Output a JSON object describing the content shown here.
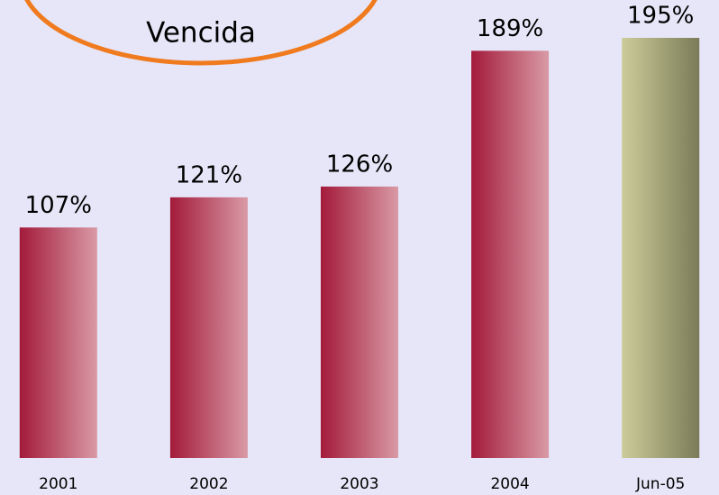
{
  "chart_data": {
    "type": "bar",
    "title": "Vencida",
    "categories": [
      "2001",
      "2002",
      "2003",
      "2004",
      "Jun-05"
    ],
    "values": [
      107,
      121,
      126,
      189,
      195
    ],
    "value_labels": [
      "107%",
      "121%",
      "126%",
      "189%",
      "195%"
    ],
    "colors": [
      [
        "#a31a3a",
        "#d99aa6"
      ],
      [
        "#a31a3a",
        "#d99aa6"
      ],
      [
        "#a31a3a",
        "#d99aa6"
      ],
      [
        "#a31a3a",
        "#d99aa6"
      ],
      [
        "#cccc9a",
        "#7b7b58"
      ]
    ]
  }
}
